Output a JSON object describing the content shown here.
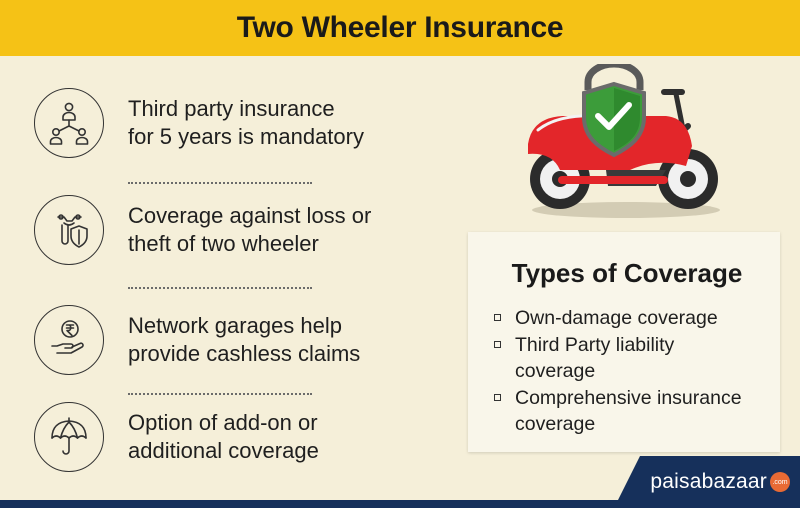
{
  "header": {
    "title": "Two Wheeler Insurance"
  },
  "features": [
    {
      "lines": [
        "Third party insurance",
        "for 5 years is mandatory"
      ],
      "icon": "people-network-icon"
    },
    {
      "lines": [
        "Coverage against loss or",
        "theft of two  wheeler"
      ],
      "icon": "scooter-shield-icon"
    },
    {
      "lines": [
        "Network garages help",
        "provide cashless claims"
      ],
      "icon": "rupee-hand-icon"
    },
    {
      "lines": [
        "Option of add-on or",
        "additional coverage"
      ],
      "icon": "umbrella-icon"
    }
  ],
  "coverage": {
    "title": "Types of Coverage",
    "items": [
      {
        "lines": [
          "Own-damage coverage"
        ]
      },
      {
        "lines": [
          "Third Party liability",
          "coverage"
        ]
      },
      {
        "lines": [
          "Comprehensive insurance",
          "coverage"
        ]
      }
    ]
  },
  "logo": {
    "brand": "paisabazaar",
    "suffix": ".com"
  },
  "colors": {
    "header": "#f5c216",
    "background": "#f5efd9",
    "bike_red": "#e3262a",
    "shield_green": "#3c9c3a",
    "logo_navy": "#16305b",
    "logo_orange": "#e86a34"
  }
}
